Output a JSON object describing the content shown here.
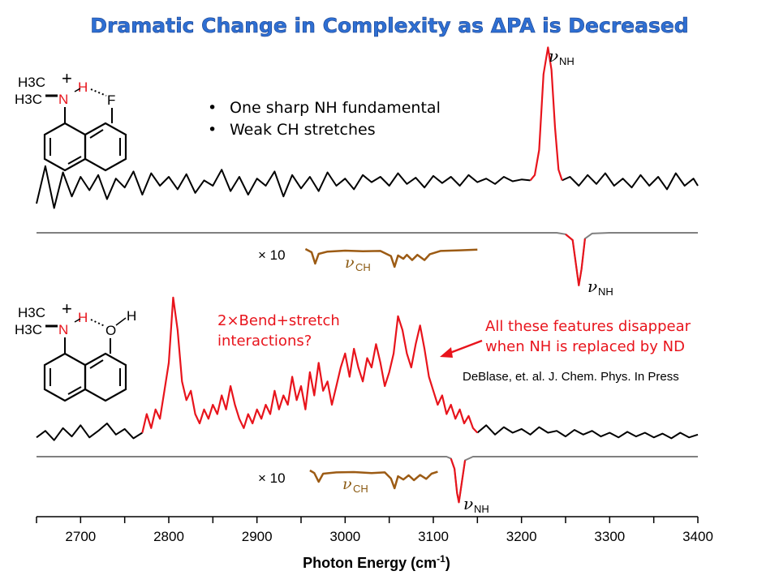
{
  "title": "Dramatic Change in Complexity as ΔPA is Decreased",
  "chart_data": {
    "type": "line",
    "xlabel": "Photon Energy (cm",
    "xlabel_sup": "-1",
    "xlabel_end": ")",
    "xlim": [
      2650,
      3400
    ],
    "x_ticks": [
      "2700",
      "2800",
      "2900",
      "3000",
      "3100",
      "3200",
      "3300",
      "3400"
    ],
    "x_tick_values": [
      2700,
      2800,
      2900,
      3000,
      3100,
      3200,
      3300,
      3400
    ],
    "panels": [
      {
        "molecule": {
          "left_group_1": "H3C",
          "left_group_2": "H3C",
          "charge": "+",
          "n_atom": "N",
          "h_atom": "H",
          "acceptor": "F"
        },
        "bullets": [
          "One sharp NH fundamental",
          "Weak CH stretches"
        ],
        "nu_nh_top": "NH",
        "nu_nh_bottom": "NH",
        "nu_ch": "CH",
        "scale_label": "× 10",
        "trace_black_left": [
          [
            2650,
            0.1
          ],
          [
            2660,
            0.52
          ],
          [
            2670,
            0.05
          ],
          [
            2680,
            0.45
          ],
          [
            2690,
            0.18
          ],
          [
            2700,
            0.4
          ],
          [
            2710,
            0.25
          ],
          [
            2720,
            0.42
          ],
          [
            2730,
            0.15
          ],
          [
            2740,
            0.38
          ],
          [
            2750,
            0.28
          ],
          [
            2760,
            0.46
          ],
          [
            2770,
            0.2
          ],
          [
            2780,
            0.44
          ],
          [
            2790,
            0.3
          ],
          [
            2800,
            0.4
          ],
          [
            2810,
            0.26
          ],
          [
            2820,
            0.43
          ],
          [
            2830,
            0.22
          ],
          [
            2840,
            0.36
          ],
          [
            2850,
            0.3
          ],
          [
            2860,
            0.48
          ],
          [
            2870,
            0.24
          ],
          [
            2880,
            0.4
          ],
          [
            2890,
            0.2
          ],
          [
            2900,
            0.38
          ],
          [
            2910,
            0.3
          ],
          [
            2920,
            0.46
          ],
          [
            2930,
            0.18
          ],
          [
            2940,
            0.42
          ],
          [
            2950,
            0.27
          ],
          [
            2960,
            0.4
          ],
          [
            2970,
            0.24
          ],
          [
            2980,
            0.45
          ],
          [
            2990,
            0.3
          ],
          [
            3000,
            0.38
          ],
          [
            3010,
            0.26
          ],
          [
            3020,
            0.42
          ],
          [
            3030,
            0.34
          ],
          [
            3040,
            0.4
          ],
          [
            3050,
            0.3
          ],
          [
            3060,
            0.44
          ],
          [
            3070,
            0.32
          ],
          [
            3080,
            0.39
          ],
          [
            3090,
            0.28
          ],
          [
            3100,
            0.41
          ],
          [
            3110,
            0.33
          ],
          [
            3120,
            0.4
          ],
          [
            3130,
            0.3
          ],
          [
            3140,
            0.42
          ],
          [
            3150,
            0.34
          ],
          [
            3160,
            0.38
          ],
          [
            3170,
            0.32
          ],
          [
            3180,
            0.4
          ],
          [
            3190,
            0.35
          ],
          [
            3200,
            0.37
          ],
          [
            3210,
            0.36
          ]
        ],
        "trace_red": [
          [
            3210,
            0.36
          ],
          [
            3215,
            0.42
          ],
          [
            3220,
            0.7
          ],
          [
            3225,
            1.55
          ],
          [
            3230,
            1.85
          ],
          [
            3234,
            1.6
          ],
          [
            3238,
            0.95
          ],
          [
            3242,
            0.48
          ],
          [
            3246,
            0.36
          ]
        ],
        "trace_black_right": [
          [
            3246,
            0.36
          ],
          [
            3255,
            0.4
          ],
          [
            3265,
            0.3
          ],
          [
            3275,
            0.42
          ],
          [
            3285,
            0.32
          ],
          [
            3295,
            0.44
          ],
          [
            3305,
            0.3
          ],
          [
            3315,
            0.38
          ],
          [
            3325,
            0.28
          ],
          [
            3335,
            0.42
          ],
          [
            3345,
            0.3
          ],
          [
            3355,
            0.4
          ],
          [
            3365,
            0.26
          ],
          [
            3375,
            0.44
          ],
          [
            3385,
            0.3
          ],
          [
            3395,
            0.38
          ],
          [
            3400,
            0.3
          ]
        ],
        "depletion_nh": [
          [
            2650,
            0
          ],
          [
            3240,
            0
          ],
          [
            3250,
            -0.02
          ],
          [
            3258,
            -0.1
          ],
          [
            3262,
            -0.45
          ],
          [
            3265,
            -0.72
          ],
          [
            3268,
            -0.5
          ],
          [
            3272,
            -0.08
          ],
          [
            3280,
            -0.01
          ],
          [
            3300,
            0
          ],
          [
            3400,
            0
          ]
        ],
        "depletion_ch": [
          [
            2955,
            0.0
          ],
          [
            2962,
            -0.1
          ],
          [
            2966,
            -0.45
          ],
          [
            2970,
            -0.15
          ],
          [
            2980,
            -0.08
          ],
          [
            3000,
            -0.05
          ],
          [
            3020,
            -0.07
          ],
          [
            3040,
            -0.06
          ],
          [
            3052,
            -0.22
          ],
          [
            3056,
            -0.55
          ],
          [
            3060,
            -0.2
          ],
          [
            3066,
            -0.3
          ],
          [
            3070,
            -0.18
          ],
          [
            3076,
            -0.34
          ],
          [
            3082,
            -0.18
          ],
          [
            3090,
            -0.34
          ],
          [
            3096,
            -0.16
          ],
          [
            3108,
            -0.06
          ],
          [
            3130,
            -0.04
          ],
          [
            3150,
            -0.02
          ]
        ]
      },
      {
        "molecule": {
          "left_group_1": "H3C",
          "left_group_2": "H3C",
          "charge": "+",
          "n_atom": "N",
          "h_atom": "H",
          "acceptor": "O",
          "acceptor_h": "H"
        },
        "annotation_left": [
          "2×Bend+stretch",
          "interactions?"
        ],
        "annotation_right": [
          "All these features disappear",
          "when NH is replaced by ND"
        ],
        "citation": "DeBlase, et. al. J. Chem. Phys. In Press",
        "nu_nh": "NH",
        "nu_ch": "CH",
        "scale_label": "× 10",
        "trace_black_left": [
          [
            2650,
            0.05
          ],
          [
            2660,
            0.12
          ],
          [
            2670,
            0.02
          ],
          [
            2680,
            0.15
          ],
          [
            2690,
            0.06
          ],
          [
            2700,
            0.18
          ],
          [
            2710,
            0.05
          ],
          [
            2720,
            0.12
          ],
          [
            2730,
            0.2
          ],
          [
            2740,
            0.08
          ],
          [
            2750,
            0.14
          ],
          [
            2760,
            0.04
          ],
          [
            2770,
            0.1
          ]
        ],
        "trace_red": [
          [
            2770,
            0.1
          ],
          [
            2775,
            0.3
          ],
          [
            2780,
            0.15
          ],
          [
            2785,
            0.35
          ],
          [
            2790,
            0.25
          ],
          [
            2795,
            0.55
          ],
          [
            2800,
            0.85
          ],
          [
            2805,
            1.55
          ],
          [
            2810,
            1.2
          ],
          [
            2815,
            0.65
          ],
          [
            2820,
            0.45
          ],
          [
            2825,
            0.55
          ],
          [
            2830,
            0.3
          ],
          [
            2835,
            0.2
          ],
          [
            2840,
            0.35
          ],
          [
            2845,
            0.25
          ],
          [
            2850,
            0.4
          ],
          [
            2855,
            0.3
          ],
          [
            2860,
            0.5
          ],
          [
            2865,
            0.35
          ],
          [
            2870,
            0.6
          ],
          [
            2875,
            0.4
          ],
          [
            2880,
            0.25
          ],
          [
            2885,
            0.15
          ],
          [
            2890,
            0.3
          ],
          [
            2895,
            0.2
          ],
          [
            2900,
            0.35
          ],
          [
            2905,
            0.25
          ],
          [
            2910,
            0.4
          ],
          [
            2915,
            0.3
          ],
          [
            2920,
            0.55
          ],
          [
            2925,
            0.35
          ],
          [
            2930,
            0.5
          ],
          [
            2935,
            0.4
          ],
          [
            2940,
            0.7
          ],
          [
            2945,
            0.45
          ],
          [
            2950,
            0.6
          ],
          [
            2955,
            0.35
          ],
          [
            2960,
            0.75
          ],
          [
            2965,
            0.5
          ],
          [
            2970,
            0.85
          ],
          [
            2975,
            0.55
          ],
          [
            2980,
            0.65
          ],
          [
            2985,
            0.4
          ],
          [
            2990,
            0.6
          ],
          [
            2995,
            0.8
          ],
          [
            3000,
            0.95
          ],
          [
            3005,
            0.7
          ],
          [
            3010,
            1.0
          ],
          [
            3015,
            0.8
          ],
          [
            3020,
            0.65
          ],
          [
            3025,
            0.9
          ],
          [
            3030,
            0.8
          ],
          [
            3035,
            1.05
          ],
          [
            3040,
            0.85
          ],
          [
            3045,
            0.6
          ],
          [
            3050,
            0.75
          ],
          [
            3055,
            0.95
          ],
          [
            3060,
            1.35
          ],
          [
            3065,
            1.2
          ],
          [
            3070,
            0.95
          ],
          [
            3075,
            0.8
          ],
          [
            3080,
            1.05
          ],
          [
            3085,
            1.25
          ],
          [
            3090,
            1.0
          ],
          [
            3095,
            0.7
          ],
          [
            3100,
            0.55
          ],
          [
            3105,
            0.4
          ],
          [
            3110,
            0.5
          ],
          [
            3115,
            0.3
          ],
          [
            3120,
            0.4
          ],
          [
            3125,
            0.25
          ],
          [
            3130,
            0.35
          ],
          [
            3135,
            0.2
          ],
          [
            3140,
            0.28
          ],
          [
            3145,
            0.15
          ],
          [
            3150,
            0.1
          ]
        ],
        "trace_black_right": [
          [
            3150,
            0.1
          ],
          [
            3160,
            0.18
          ],
          [
            3170,
            0.08
          ],
          [
            3180,
            0.16
          ],
          [
            3190,
            0.1
          ],
          [
            3200,
            0.14
          ],
          [
            3210,
            0.08
          ],
          [
            3220,
            0.16
          ],
          [
            3230,
            0.1
          ],
          [
            3240,
            0.12
          ],
          [
            3250,
            0.06
          ],
          [
            3260,
            0.13
          ],
          [
            3270,
            0.08
          ],
          [
            3280,
            0.12
          ],
          [
            3290,
            0.06
          ],
          [
            3300,
            0.1
          ],
          [
            3310,
            0.05
          ],
          [
            3320,
            0.11
          ],
          [
            3330,
            0.06
          ],
          [
            3340,
            0.1
          ],
          [
            3350,
            0.05
          ],
          [
            3360,
            0.09
          ],
          [
            3370,
            0.04
          ],
          [
            3380,
            0.1
          ],
          [
            3390,
            0.05
          ],
          [
            3400,
            0.08
          ]
        ],
        "depletion_nh": [
          [
            2650,
            0
          ],
          [
            3115,
            0
          ],
          [
            3120,
            -0.03
          ],
          [
            3124,
            -0.2
          ],
          [
            3127,
            -0.6
          ],
          [
            3129,
            -0.75
          ],
          [
            3132,
            -0.45
          ],
          [
            3136,
            -0.06
          ],
          [
            3145,
            0
          ],
          [
            3400,
            0
          ]
        ],
        "depletion_ch": [
          [
            2960,
            0.0
          ],
          [
            2965,
            -0.08
          ],
          [
            2970,
            -0.35
          ],
          [
            2975,
            -0.1
          ],
          [
            2990,
            -0.06
          ],
          [
            3010,
            -0.05
          ],
          [
            3030,
            -0.08
          ],
          [
            3045,
            -0.06
          ],
          [
            3052,
            -0.25
          ],
          [
            3056,
            -0.55
          ],
          [
            3060,
            -0.18
          ],
          [
            3066,
            -0.28
          ],
          [
            3072,
            -0.15
          ],
          [
            3078,
            -0.3
          ],
          [
            3085,
            -0.14
          ],
          [
            3092,
            -0.26
          ],
          [
            3098,
            -0.1
          ],
          [
            3105,
            -0.04
          ]
        ]
      }
    ]
  },
  "colors": {
    "title": "#2e6fd3",
    "red_trace": "#e8141c",
    "black_trace": "#000000",
    "depletion": "#808080",
    "ch_trace": "#9c5b14"
  }
}
